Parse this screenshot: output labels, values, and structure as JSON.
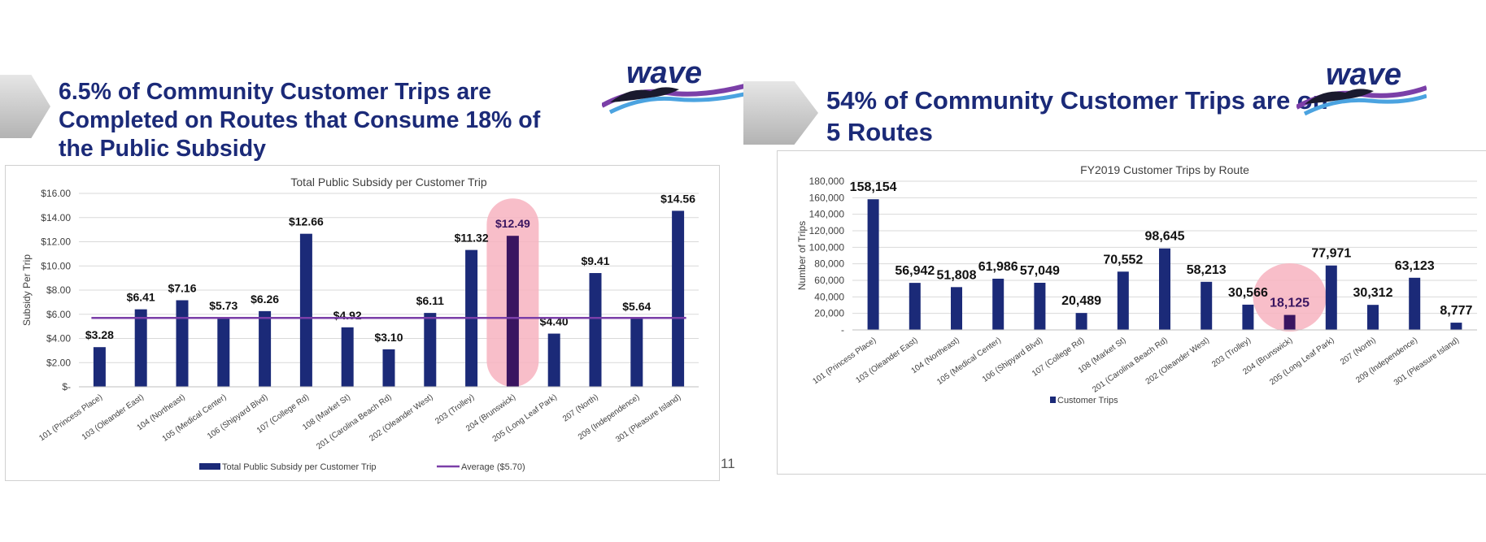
{
  "slide_left": {
    "headline": "6.5% of Community Customer Trips are Completed on Routes that Consume 18% of the Public Subsidy",
    "logo_text": "wave",
    "page_number": "11"
  },
  "slide_right": {
    "headline": "54% of Community Customer Trips are on 5 Routes",
    "logo_text": "wave"
  },
  "colors": {
    "bar": "#1b2a78",
    "highlight_bar": "#3a1560",
    "average_line": "#7b3fa8",
    "highlight_oval": "#f7b3c0",
    "headline": "#1b2a78"
  },
  "chart_data": [
    {
      "type": "bar",
      "title": "Total Public Subsidy per Customer Trip",
      "xlabel": "",
      "ylabel": "Subsidy Per Trip",
      "ylim": [
        0,
        16
      ],
      "yticks": [
        "$-",
        "$2.00",
        "$4.00",
        "$6.00",
        "$8.00",
        "$10.00",
        "$12.00",
        "$14.00",
        "$16.00"
      ],
      "categories": [
        "101 (Princess Place)",
        "103 (Oleander East)",
        "104 (Northeast)",
        "105 (Medical Center)",
        "106 (Shipyard Blvd)",
        "107 (College Rd)",
        "108 (Market St)",
        "201 (Carolina Beach Rd)",
        "202 (Oleander West)",
        "203 (Trolley)",
        "204 (Brunswick)",
        "205 (Long Leaf Park)",
        "207 (North)",
        "209 (Independence)",
        "301 (Pleasure Island)"
      ],
      "values": [
        3.28,
        6.41,
        7.16,
        5.73,
        6.26,
        12.66,
        4.92,
        3.1,
        6.11,
        11.32,
        12.49,
        4.4,
        9.41,
        5.64,
        14.56
      ],
      "data_labels": [
        "$3.28",
        "$6.41",
        "$7.16",
        "$5.73",
        "$6.26",
        "$12.66",
        "$4.92",
        "$3.10",
        "$6.11",
        "$11.32",
        "$12.49",
        "$4.40",
        "$9.41",
        "$5.64",
        "$14.56"
      ],
      "highlight_index": 10,
      "average": 5.7,
      "legend": [
        "Total Public Subsidy per Customer Trip",
        "Average ($5.70)"
      ],
      "legend_position": "bottom",
      "grid": true
    },
    {
      "type": "bar",
      "title": "FY2019 Customer Trips by Route",
      "xlabel": "",
      "ylabel": "Number of Trips",
      "ylim": [
        0,
        180000
      ],
      "yticks": [
        "-",
        "20,000",
        "40,000",
        "60,000",
        "80,000",
        "100,000",
        "120,000",
        "140,000",
        "160,000",
        "180,000"
      ],
      "categories": [
        "101 (Princess Place)",
        "103 (Oleander East)",
        "104 (Northeast)",
        "105 (Medical Center)",
        "106 (Shipyard Blvd)",
        "107 (College Rd)",
        "108 (Market St)",
        "201 (Carolina Beach Rd)",
        "202 (Oleander West)",
        "203 (Trolley)",
        "204 (Brunswick)",
        "205 (Long Leaf Park)",
        "207 (North)",
        "209 (Independence)",
        "301 (Pleasure Island)"
      ],
      "values": [
        158154,
        56942,
        51808,
        61986,
        57049,
        20489,
        70552,
        98645,
        58213,
        30566,
        18125,
        77971,
        30312,
        63123,
        8777
      ],
      "data_labels": [
        "158,154",
        "56,942",
        "51,808",
        "61,986",
        "57,049",
        "20,489",
        "70,552",
        "98,645",
        "58,213",
        "30,566",
        "18,125",
        "77,971",
        "30,312",
        "63,123",
        "8,777"
      ],
      "highlight_index": 10,
      "legend": [
        "Customer Trips"
      ],
      "legend_position": "bottom",
      "grid": true
    }
  ]
}
